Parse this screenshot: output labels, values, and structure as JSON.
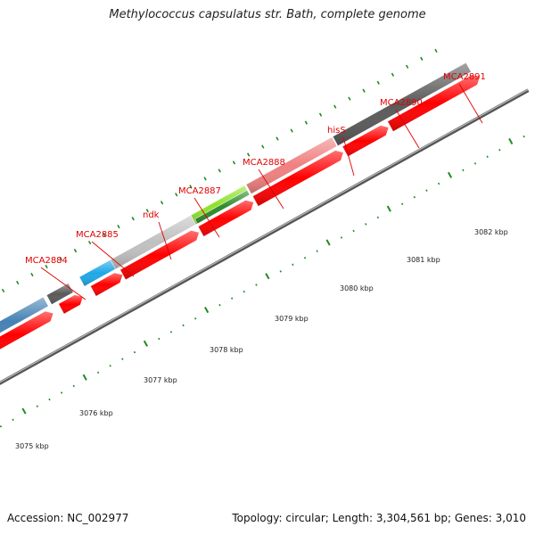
{
  "title": "Methylococcus capsulatus str. Bath, complete genome",
  "footer": {
    "accession": "Accession: NC_002977",
    "stats": "Topology: circular; Length: 3,304,561 bp; Genes: 3,010"
  },
  "gene_labels": [
    "MCA2884",
    "MCA2885",
    "ndk",
    "MCA2887",
    "MCA2888",
    "hisS",
    "MCA2890",
    "MCA2891"
  ],
  "kbp_labels": [
    "3075 kbp",
    "3076 kbp",
    "3077 kbp",
    "3078 kbp",
    "3079 kbp",
    "3080 kbp",
    "3081 kbp",
    "3082 kbp"
  ],
  "colors": {
    "label": "#e00000",
    "cds_red": "#ff0000",
    "tick_green": "#228b22",
    "backbone": "#888888",
    "orange": "#ff8c00",
    "steel_blue": "#4682b4",
    "dark_gray": "#5a5a5a",
    "sky_blue": "#1ea8e6",
    "light_gray": "#c0c0c0",
    "yellow_green": "#8ee22a",
    "forest_green": "#2e8b2e",
    "light_red": "#f08080"
  }
}
